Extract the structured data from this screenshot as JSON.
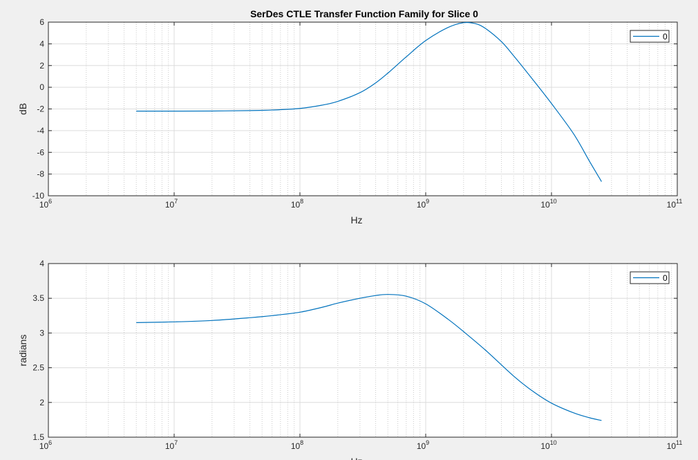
{
  "figure": {
    "background": "#f0f0f0",
    "axes_background": "#ffffff",
    "line_color": "#0072bd"
  },
  "chart_data": [
    {
      "type": "line",
      "title": "SerDes CTLE Transfer Function Family for Slice 0",
      "xlabel": "Hz",
      "ylabel": "dB",
      "xscale": "log",
      "xlim": [
        1000000,
        100000000000
      ],
      "ylim": [
        -10,
        6
      ],
      "xticks": [
        1000000,
        10000000,
        100000000,
        1000000000,
        10000000000,
        100000000000
      ],
      "xtick_labels": [
        {
          "base": "10",
          "exp": "6"
        },
        {
          "base": "10",
          "exp": "7"
        },
        {
          "base": "10",
          "exp": "8"
        },
        {
          "base": "10",
          "exp": "9"
        },
        {
          "base": "10",
          "exp": "10"
        },
        {
          "base": "10",
          "exp": "11"
        }
      ],
      "yticks": [
        -10,
        -8,
        -6,
        -4,
        -2,
        0,
        2,
        4,
        6
      ],
      "ytick_labels": [
        "-10",
        "-8",
        "-6",
        "-4",
        "-2",
        "0",
        "2",
        "4",
        "6"
      ],
      "grid": true,
      "minor_grid": true,
      "legend_position": "top-right",
      "series": [
        {
          "name": "0",
          "x": [
            5000000,
            10000000,
            20000000,
            40000000,
            60000000,
            100000000,
            150000000,
            200000000,
            300000000,
            400000000,
            500000000,
            700000000,
            1000000000,
            1500000000,
            2000000000,
            2500000000,
            3000000000,
            4000000000,
            5000000000,
            7000000000,
            10000000000,
            15000000000,
            20000000000,
            25000000000
          ],
          "y": [
            -2.2,
            -2.2,
            -2.19,
            -2.15,
            -2.1,
            -1.95,
            -1.65,
            -1.3,
            -0.5,
            0.4,
            1.3,
            2.8,
            4.3,
            5.5,
            5.95,
            5.85,
            5.4,
            4.2,
            2.9,
            0.8,
            -1.5,
            -4.3,
            -6.8,
            -8.7
          ]
        }
      ]
    },
    {
      "type": "line",
      "title": "",
      "xlabel": "Hz",
      "ylabel": "radians",
      "xscale": "log",
      "xlim": [
        1000000,
        100000000000
      ],
      "ylim": [
        1.5,
        4
      ],
      "xticks": [
        1000000,
        10000000,
        100000000,
        1000000000,
        10000000000,
        100000000000
      ],
      "xtick_labels": [
        {
          "base": "10",
          "exp": "6"
        },
        {
          "base": "10",
          "exp": "7"
        },
        {
          "base": "10",
          "exp": "8"
        },
        {
          "base": "10",
          "exp": "9"
        },
        {
          "base": "10",
          "exp": "10"
        },
        {
          "base": "10",
          "exp": "11"
        }
      ],
      "yticks": [
        1.5,
        2,
        2.5,
        3,
        3.5,
        4
      ],
      "ytick_labels": [
        "1.5",
        "2",
        "2.5",
        "3",
        "3.5",
        "4"
      ],
      "grid": true,
      "minor_grid": true,
      "legend_position": "top-right",
      "series": [
        {
          "name": "0",
          "x": [
            5000000,
            10000000,
            20000000,
            40000000,
            60000000,
            100000000,
            150000000,
            200000000,
            300000000,
            400000000,
            500000000,
            700000000,
            1000000000,
            1500000000,
            2000000000,
            3000000000,
            5000000000,
            7000000000,
            10000000000,
            15000000000,
            20000000000,
            25000000000
          ],
          "y": [
            3.15,
            3.16,
            3.18,
            3.22,
            3.25,
            3.3,
            3.37,
            3.43,
            3.5,
            3.54,
            3.555,
            3.53,
            3.42,
            3.2,
            3.02,
            2.75,
            2.38,
            2.17,
            1.99,
            1.85,
            1.78,
            1.74
          ]
        }
      ]
    }
  ]
}
